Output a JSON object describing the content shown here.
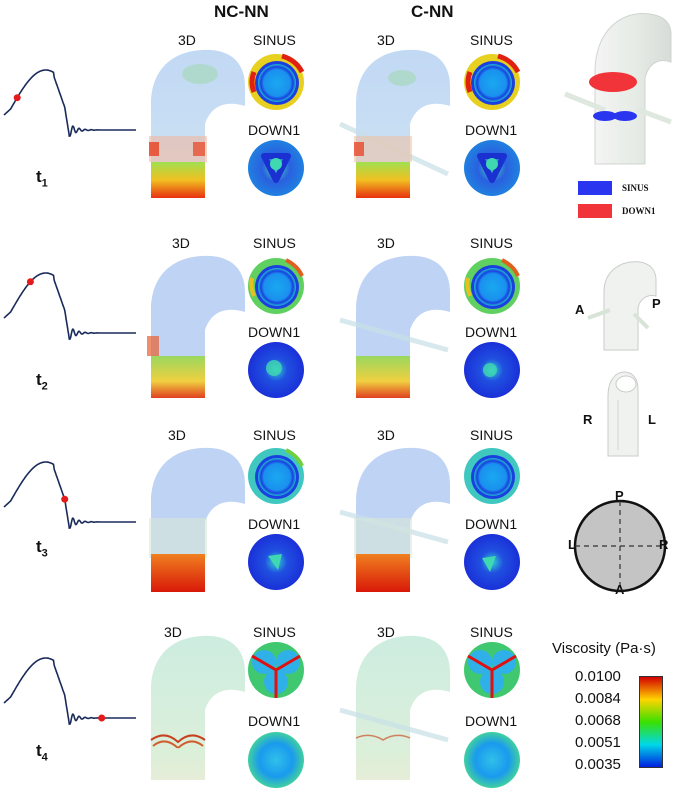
{
  "columns": {
    "left": "NC-NN",
    "right": "C-NN"
  },
  "view_labels": {
    "three_d": "3D",
    "sinus": "SINUS",
    "down": "DOWN1"
  },
  "times": [
    {
      "base": "t",
      "sub": "1",
      "phase": 0.1
    },
    {
      "base": "t",
      "sub": "2",
      "phase": 0.2
    },
    {
      "base": "t",
      "sub": "3",
      "phase": 0.46
    },
    {
      "base": "t",
      "sub": "4",
      "phase": 0.74
    }
  ],
  "legend": {
    "sinus": "SINUS",
    "down": "DOWN1",
    "sinus_color": "#2a35f0",
    "down_color": "#f0343a"
  },
  "orientation": {
    "a1": "A",
    "p1": "P",
    "r1": "R",
    "l1": "L",
    "top": "P",
    "bottom": "A",
    "left": "L",
    "right": "R"
  },
  "colorbar": {
    "title": "Viscosity (Pa·s)",
    "ticks": [
      "0.0100",
      "0.0084",
      "0.0068",
      "0.0051",
      "0.0035"
    ],
    "colors": [
      "#d40000",
      "#ffd400",
      "#39e000",
      "#00d8e8",
      "#0020e0"
    ]
  },
  "colors": {
    "waveform": "#1a2a5a",
    "marker": "#e51a1a"
  }
}
